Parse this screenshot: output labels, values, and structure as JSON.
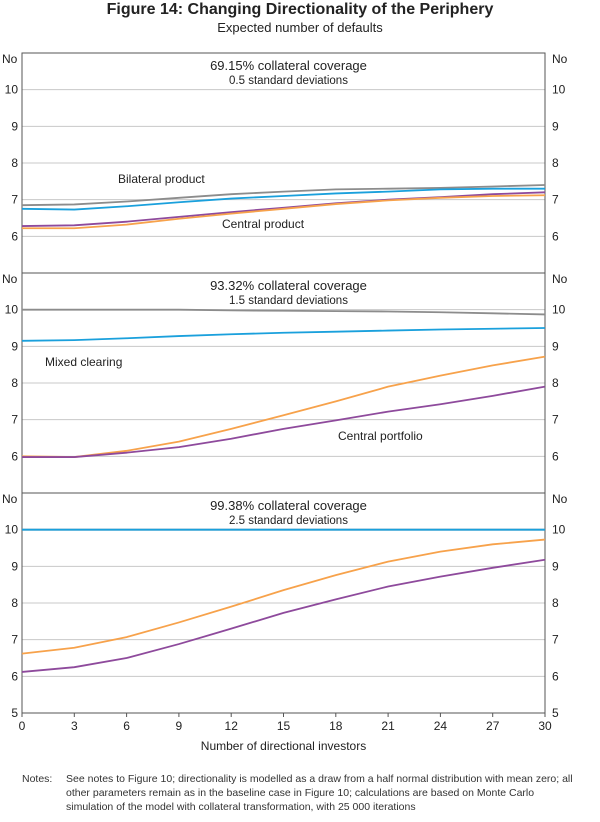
{
  "title": "Figure 14: Changing Directionality of the Periphery",
  "subtitle": "Expected number of defaults",
  "notes_label": "Notes:",
  "notes": "See notes to Figure 10; directionality is modelled as a draw from a half normal distribution with mean zero; all other parameters remain as in the baseline case in Figure 10; calculations are based on Monte Carlo simulation of the model with collateral transformation, with 25 000 iterations",
  "chart_data": [
    {
      "type": "line",
      "title": "69.15% collateral coverage",
      "subtitle": "0.5 standard deviations",
      "ylabel": "No",
      "x": [
        0,
        3,
        6,
        9,
        12,
        15,
        18,
        21,
        24,
        27,
        30
      ],
      "xlim": [
        0,
        30
      ],
      "ylim": [
        5,
        11
      ],
      "yticks": [
        6,
        7,
        8,
        9,
        10
      ],
      "grid": true,
      "series": [
        {
          "name": "Bilateral product",
          "color": "#8c8c8c",
          "values": [
            6.85,
            6.87,
            6.95,
            7.05,
            7.15,
            7.22,
            7.28,
            7.3,
            7.32,
            7.36,
            7.4
          ]
        },
        {
          "color": "#1aa0dc",
          "values": [
            6.75,
            6.73,
            6.82,
            6.93,
            7.03,
            7.1,
            7.17,
            7.22,
            7.28,
            7.3,
            7.3
          ]
        },
        {
          "color": "#8e4a9c",
          "values": [
            6.28,
            6.3,
            6.4,
            6.53,
            6.66,
            6.78,
            6.9,
            7.0,
            7.07,
            7.15,
            7.2
          ]
        },
        {
          "name": "Central product",
          "color": "#f7a24b",
          "values": [
            6.22,
            6.22,
            6.32,
            6.48,
            6.62,
            6.75,
            6.88,
            6.98,
            7.05,
            7.1,
            7.12
          ]
        }
      ]
    },
    {
      "type": "line",
      "title": "93.32% collateral coverage",
      "subtitle": "1.5 standard deviations",
      "ylabel": "No",
      "x": [
        0,
        3,
        6,
        9,
        12,
        15,
        18,
        21,
        24,
        27,
        30
      ],
      "xlim": [
        0,
        30
      ],
      "ylim": [
        5,
        11
      ],
      "yticks": [
        6,
        7,
        8,
        9,
        10
      ],
      "grid": true,
      "series": [
        {
          "color": "#8c8c8c",
          "values": [
            10.0,
            10.0,
            10.0,
            10.0,
            9.98,
            9.97,
            9.96,
            9.95,
            9.93,
            9.9,
            9.87
          ]
        },
        {
          "name": "Mixed clearing",
          "color": "#1aa0dc",
          "values": [
            9.15,
            9.17,
            9.22,
            9.28,
            9.33,
            9.37,
            9.4,
            9.43,
            9.46,
            9.48,
            9.5
          ]
        },
        {
          "color": "#f7a24b",
          "values": [
            6.0,
            5.98,
            6.15,
            6.4,
            6.75,
            7.12,
            7.5,
            7.9,
            8.2,
            8.48,
            8.72
          ]
        },
        {
          "name": "Central portfolio",
          "color": "#8e4a9c",
          "values": [
            5.98,
            5.98,
            6.1,
            6.25,
            6.48,
            6.75,
            6.98,
            7.22,
            7.42,
            7.65,
            7.9
          ]
        }
      ]
    },
    {
      "type": "line",
      "title": "99.38% collateral coverage",
      "subtitle": "2.5 standard deviations",
      "ylabel": "No",
      "xlabel": "Number of directional investors",
      "x": [
        0,
        3,
        6,
        9,
        12,
        15,
        18,
        21,
        24,
        27,
        30
      ],
      "xlim": [
        0,
        30
      ],
      "xticks": [
        0,
        3,
        6,
        9,
        12,
        15,
        18,
        21,
        24,
        27,
        30
      ],
      "ylim": [
        5,
        11
      ],
      "yticks": [
        5,
        6,
        7,
        8,
        9,
        10
      ],
      "grid": true,
      "series": [
        {
          "color": "#8c8c8c",
          "values": [
            10,
            10,
            10,
            10,
            10,
            10,
            10,
            10,
            10,
            10,
            10
          ]
        },
        {
          "color": "#1aa0dc",
          "values": [
            10,
            10,
            10,
            10,
            10,
            10,
            10,
            10,
            10,
            10,
            10
          ]
        },
        {
          "color": "#f7a24b",
          "values": [
            6.62,
            6.78,
            7.07,
            7.47,
            7.9,
            8.35,
            8.76,
            9.13,
            9.4,
            9.6,
            9.73
          ]
        },
        {
          "color": "#8e4a9c",
          "values": [
            6.12,
            6.25,
            6.5,
            6.88,
            7.3,
            7.73,
            8.1,
            8.45,
            8.72,
            8.96,
            9.18
          ]
        }
      ]
    }
  ]
}
